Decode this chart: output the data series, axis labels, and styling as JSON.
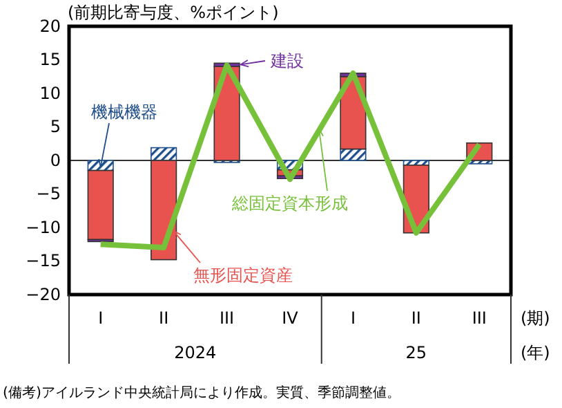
{
  "chart_data": {
    "type": "bar",
    "title": "(前期比寄与度、%ポイント)",
    "stacked": true,
    "categories": [
      "I",
      "II",
      "III",
      "IV",
      "I",
      "II",
      "III"
    ],
    "series": [
      {
        "name": "機械機器",
        "color": "#1f4e8c",
        "values": [
          -1.5,
          1.9,
          -0.3,
          -1.4,
          1.7,
          -0.7,
          -0.5
        ]
      },
      {
        "name": "無形固定資産",
        "color": "#e8534f",
        "values": [
          -10.3,
          -14.8,
          14.0,
          -0.9,
          10.8,
          -10.1,
          2.6
        ]
      },
      {
        "name": "建設",
        "color": "#7030a0",
        "values": [
          -0.3,
          0.0,
          0.5,
          -0.4,
          0.5,
          0.0,
          0.0
        ]
      },
      {
        "name": "総固定資本形成",
        "type": "line",
        "color": "#77c13a",
        "values": [
          -12.5,
          -13.0,
          14.2,
          -2.8,
          13.0,
          -10.8,
          2.4
        ]
      }
    ],
    "ylim": [
      -20,
      20
    ],
    "yticks": [
      -20,
      -15,
      -10,
      -5,
      0,
      5,
      10,
      15,
      20
    ],
    "annotations": [
      "2024",
      "25",
      "(期)",
      "(年)",
      "(備考)アイルランド中央統計局により作成。実質、季節調整値。"
    ]
  }
}
